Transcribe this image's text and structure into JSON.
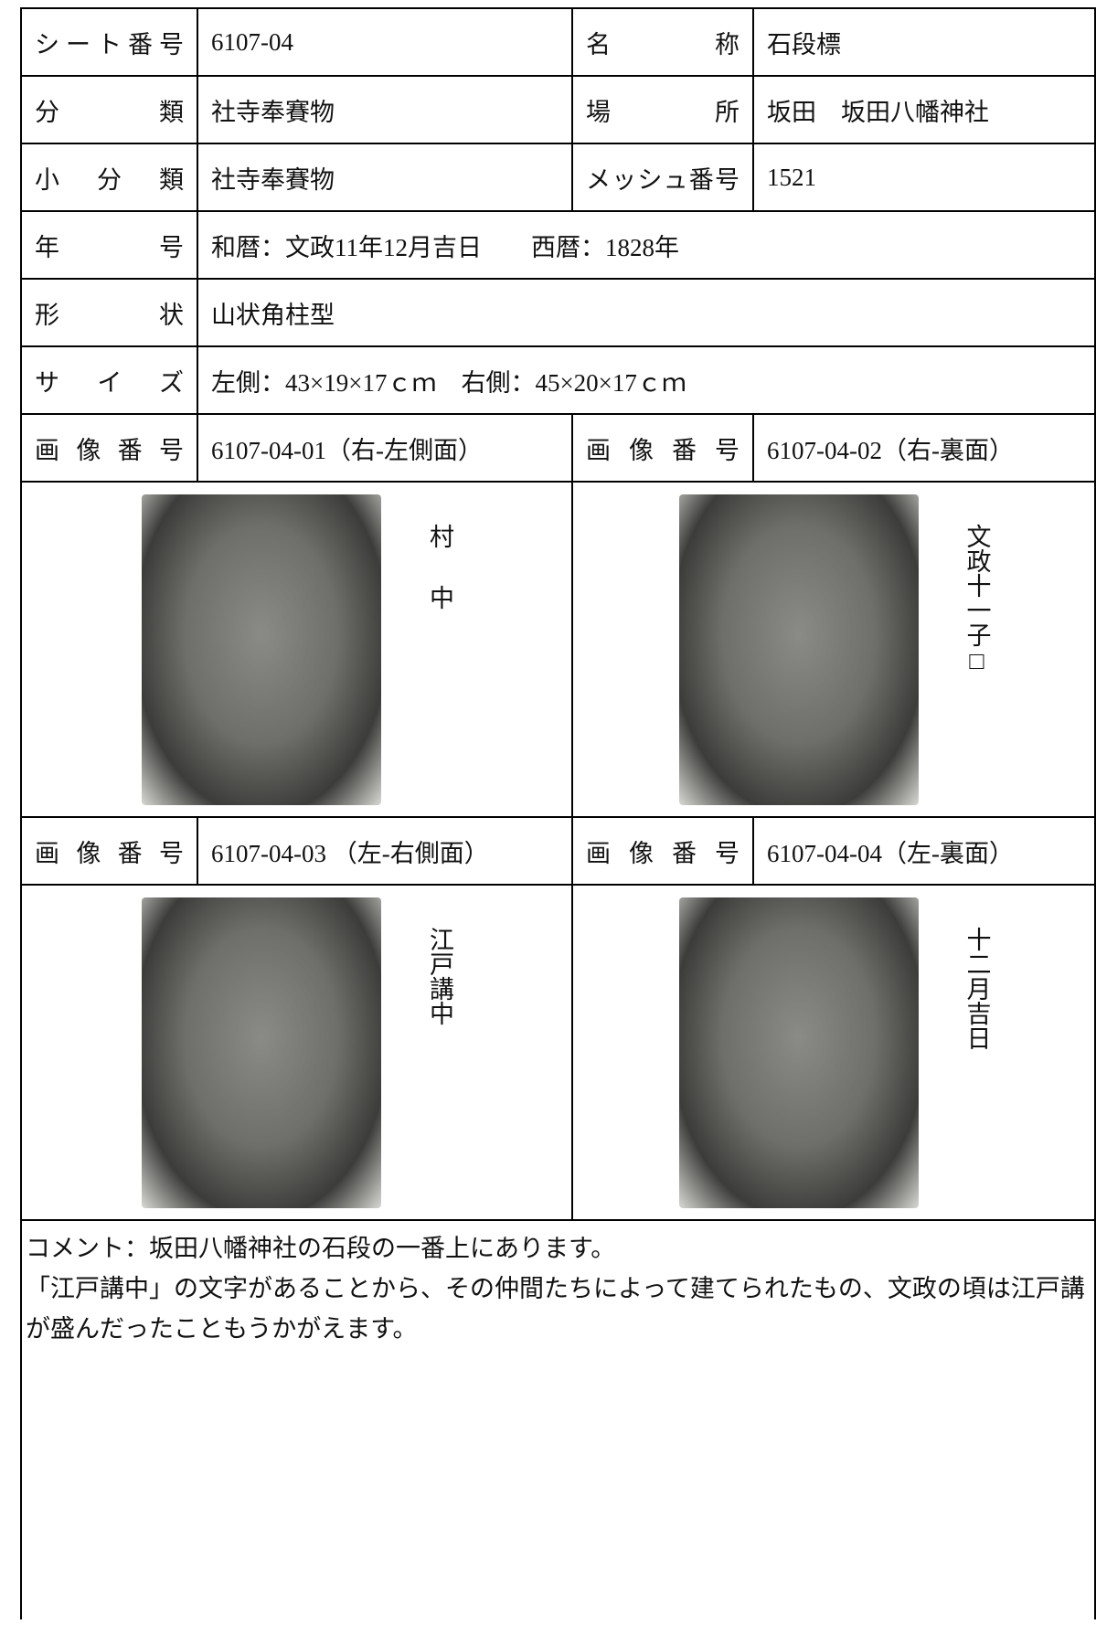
{
  "table": {
    "rows": [
      [
        "シート番号",
        "6107-04",
        "名称",
        "石段標"
      ],
      [
        "分類",
        "社寺奉賽物",
        "場所",
        "坂田　坂田八幡神社"
      ],
      [
        "小分類",
        "社寺奉賽物",
        "メッシュ番号",
        "1521"
      ],
      [
        "年号",
        "和暦：文政11年12月吉日　　西暦：1828年"
      ],
      [
        "形状",
        "山状角柱型"
      ],
      [
        "サイズ",
        "左側：43×19×17ｃｍ　右側：45×20×17ｃｍ"
      ]
    ],
    "photos": [
      {
        "label": "画像番号",
        "number": "6107-04-01（右-左側面）",
        "inscription": "村中"
      },
      {
        "label": "画像番号",
        "number": "6107-04-02（右-裏面）",
        "inscription": "文政十一子□"
      },
      {
        "label": "画像番号",
        "number": "6107-04-03 （左-右側面）",
        "inscription": "江戸講中"
      },
      {
        "label": "画像番号",
        "number": "6107-04-04（左-裏面）",
        "inscription": "十二月吉日"
      }
    ],
    "comment": [
      "コメント：坂田八幡神社の石段の一番上にあります。",
      "「江戸講中」の文字があることから、その仲間たちによって建てられたもの、文政の頃は江戸講が盛んだったこともうかがえます。"
    ]
  }
}
